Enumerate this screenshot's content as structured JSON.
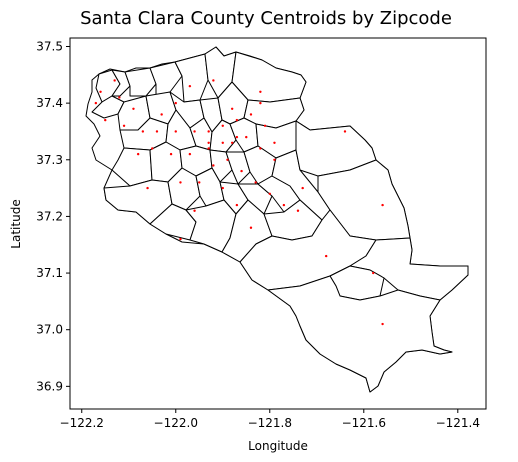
{
  "chart_data": {
    "type": "scatter",
    "title": "Santa Clara County Centroids by Zipcode",
    "xlabel": "Longitude",
    "ylabel": "Latitude",
    "xlim": [
      -122.225,
      -121.34
    ],
    "ylim": [
      36.86,
      37.515
    ],
    "xticks": [
      -122.2,
      -122.0,
      -121.8,
      -121.6,
      -121.4
    ],
    "xtick_labels": [
      "−122.2",
      "−122.0",
      "−121.8",
      "−121.6",
      "−121.4"
    ],
    "yticks": [
      36.9,
      37.0,
      37.1,
      37.2,
      37.3,
      37.4,
      37.5
    ],
    "ytick_labels": [
      "36.9",
      "37.0",
      "37.1",
      "37.2",
      "37.3",
      "37.4",
      "37.5"
    ],
    "grid": false,
    "colors": {
      "centroid": "#ff0000",
      "boundary": "#000000",
      "background": "#ffffff"
    },
    "centroids": [
      {
        "x": -122.13,
        "y": 37.44
      },
      {
        "x": -122.16,
        "y": 37.42
      },
      {
        "x": -122.12,
        "y": 37.41
      },
      {
        "x": -122.09,
        "y": 37.39
      },
      {
        "x": -122.03,
        "y": 37.38
      },
      {
        "x": -122.0,
        "y": 37.4
      },
      {
        "x": -121.97,
        "y": 37.43
      },
      {
        "x": -121.92,
        "y": 37.44
      },
      {
        "x": -121.82,
        "y": 37.42
      },
      {
        "x": -122.15,
        "y": 37.37
      },
      {
        "x": -122.11,
        "y": 37.36
      },
      {
        "x": -122.07,
        "y": 37.35
      },
      {
        "x": -122.04,
        "y": 37.35
      },
      {
        "x": -122.0,
        "y": 37.35
      },
      {
        "x": -121.96,
        "y": 37.35
      },
      {
        "x": -121.93,
        "y": 37.35
      },
      {
        "x": -121.9,
        "y": 37.36
      },
      {
        "x": -121.87,
        "y": 37.37
      },
      {
        "x": -121.84,
        "y": 37.38
      },
      {
        "x": -121.81,
        "y": 37.36
      },
      {
        "x": -121.64,
        "y": 37.35
      },
      {
        "x": -122.05,
        "y": 37.32
      },
      {
        "x": -122.01,
        "y": 37.31
      },
      {
        "x": -121.97,
        "y": 37.31
      },
      {
        "x": -121.93,
        "y": 37.32
      },
      {
        "x": -121.9,
        "y": 37.33
      },
      {
        "x": -121.87,
        "y": 37.34
      },
      {
        "x": -121.85,
        "y": 37.34
      },
      {
        "x": -121.82,
        "y": 37.32
      },
      {
        "x": -121.79,
        "y": 37.3
      },
      {
        "x": -122.06,
        "y": 37.25
      },
      {
        "x": -121.99,
        "y": 37.26
      },
      {
        "x": -121.95,
        "y": 37.26
      },
      {
        "x": -121.92,
        "y": 37.29
      },
      {
        "x": -121.89,
        "y": 37.3
      },
      {
        "x": -121.86,
        "y": 37.28
      },
      {
        "x": -121.83,
        "y": 37.26
      },
      {
        "x": -121.8,
        "y": 37.24
      },
      {
        "x": -121.77,
        "y": 37.22
      },
      {
        "x": -121.74,
        "y": 37.21
      },
      {
        "x": -121.9,
        "y": 37.25
      },
      {
        "x": -121.87,
        "y": 37.22
      },
      {
        "x": -121.96,
        "y": 37.21
      },
      {
        "x": -121.84,
        "y": 37.18
      },
      {
        "x": -121.99,
        "y": 37.16
      },
      {
        "x": -121.68,
        "y": 37.13
      },
      {
        "x": -121.58,
        "y": 37.1
      },
      {
        "x": -121.56,
        "y": 37.22
      },
      {
        "x": -121.56,
        "y": 37.01
      },
      {
        "x": -122.08,
        "y": 37.31
      },
      {
        "x": -121.93,
        "y": 37.33
      },
      {
        "x": -121.88,
        "y": 37.33
      },
      {
        "x": -121.73,
        "y": 37.25
      },
      {
        "x": -121.88,
        "y": 37.39
      },
      {
        "x": -121.79,
        "y": 37.33
      },
      {
        "x": -121.82,
        "y": 37.4
      },
      {
        "x": -122.17,
        "y": 37.4
      }
    ]
  }
}
